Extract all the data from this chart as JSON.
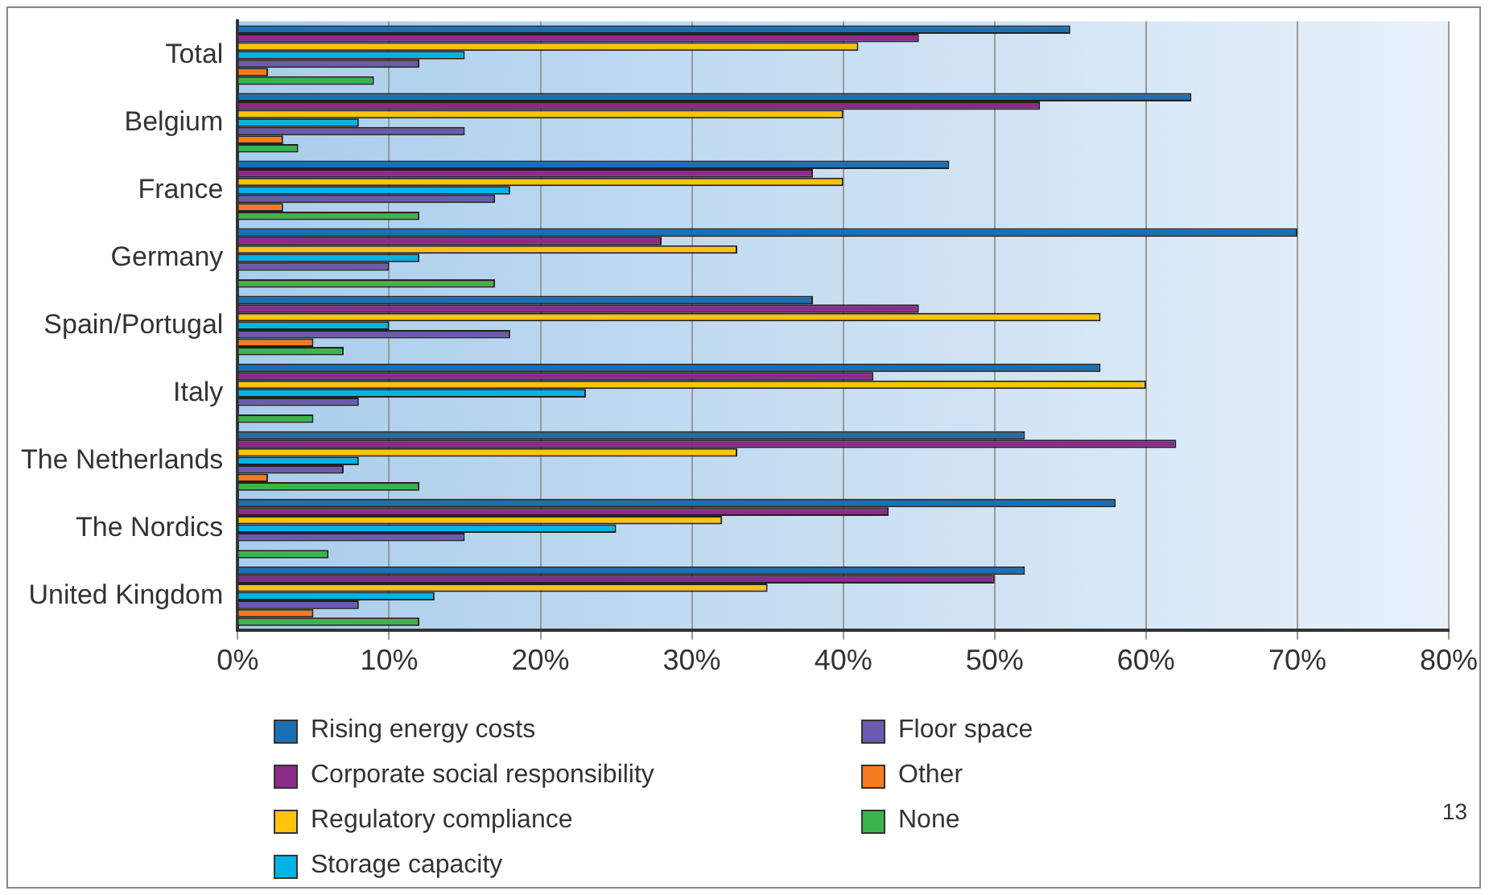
{
  "chart_data": {
    "type": "bar",
    "orientation": "horizontal",
    "categories": [
      "Total",
      "Belgium",
      "France",
      "Germany",
      "Spain/Portugal",
      "Italy",
      "The Netherlands",
      "The Nordics",
      "United Kingdom"
    ],
    "series": [
      {
        "name": "Rising energy costs",
        "color": "#1a6fb5",
        "values": [
          55,
          63,
          47,
          70,
          38,
          57,
          52,
          58,
          52
        ]
      },
      {
        "name": "Corporate social responsibility",
        "color": "#8b2a8b",
        "values": [
          45,
          53,
          38,
          28,
          45,
          42,
          62,
          43,
          50
        ]
      },
      {
        "name": "Regulatory compliance",
        "color": "#ffc20e",
        "values": [
          41,
          40,
          40,
          33,
          57,
          60,
          33,
          32,
          35
        ]
      },
      {
        "name": "Storage capacity",
        "color": "#00b4e6",
        "values": [
          15,
          8,
          18,
          12,
          10,
          23,
          8,
          25,
          13
        ]
      },
      {
        "name": "Floor space",
        "color": "#6b5bad",
        "values": [
          12,
          15,
          17,
          10,
          18,
          8,
          7,
          15,
          8
        ]
      },
      {
        "name": "Other",
        "color": "#f47b20",
        "values": [
          2,
          3,
          3,
          0,
          5,
          0,
          2,
          0,
          5
        ]
      },
      {
        "name": "None",
        "color": "#3cb44b",
        "values": [
          9,
          4,
          12,
          17,
          7,
          5,
          12,
          6,
          12
        ]
      }
    ],
    "xlim": [
      0,
      80
    ],
    "xticks": [
      {
        "value": 0,
        "label": "0%"
      },
      {
        "value": 10,
        "label": "10%"
      },
      {
        "value": 20,
        "label": "20%"
      },
      {
        "value": 30,
        "label": "30%"
      },
      {
        "value": 40,
        "label": "40%"
      },
      {
        "value": 50,
        "label": "50%"
      },
      {
        "value": 60,
        "label": "60%"
      },
      {
        "value": 70,
        "label": "70%"
      },
      {
        "value": 80,
        "label": "80%"
      }
    ],
    "grid": "x",
    "legend": "bottom",
    "annotations": [
      "13"
    ]
  }
}
